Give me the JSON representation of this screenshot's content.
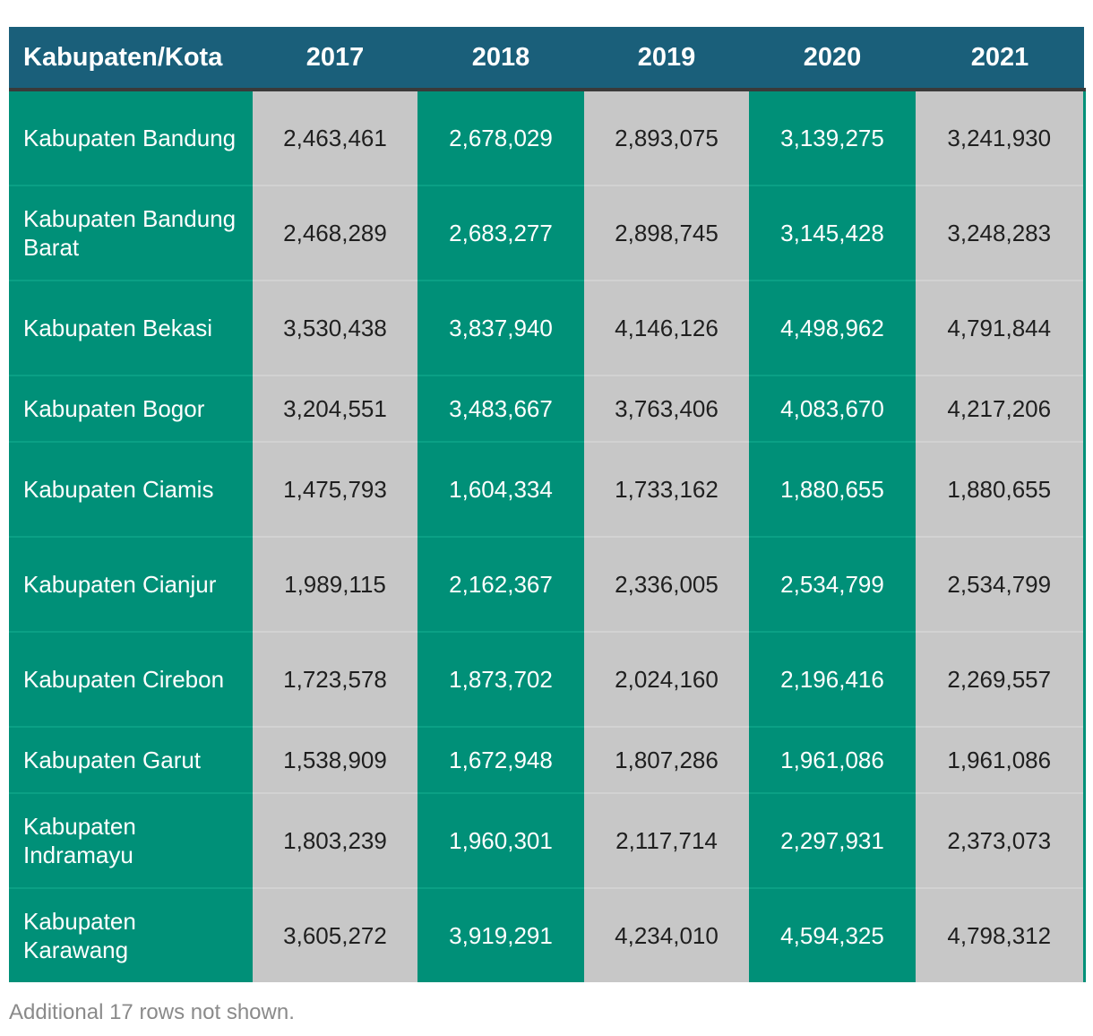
{
  "table": {
    "headers": [
      "Kabupaten/Kota",
      "2017",
      "2018",
      "2019",
      "2020",
      "2021"
    ],
    "rows": [
      {
        "name": "Kabupaten Bandung",
        "values": [
          "2,463,461",
          "2,678,029",
          "2,893,075",
          "3,139,275",
          "3,241,930"
        ]
      },
      {
        "name": "Kabupaten Bandung Barat",
        "values": [
          "2,468,289",
          "2,683,277",
          "2,898,745",
          "3,145,428",
          "3,248,283"
        ]
      },
      {
        "name": "Kabupaten Bekasi",
        "values": [
          "3,530,438",
          "3,837,940",
          "4,146,126",
          "4,498,962",
          "4,791,844"
        ]
      },
      {
        "name": "Kabupaten Bogor",
        "values": [
          "3,204,551",
          "3,483,667",
          "3,763,406",
          "4,083,670",
          "4,217,206"
        ]
      },
      {
        "name": "Kabupaten Ciamis",
        "values": [
          "1,475,793",
          "1,604,334",
          "1,733,162",
          "1,880,655",
          "1,880,655"
        ]
      },
      {
        "name": "Kabupaten Cianjur",
        "values": [
          "1,989,115",
          "2,162,367",
          "2,336,005",
          "2,534,799",
          "2,534,799"
        ]
      },
      {
        "name": "Kabupaten Cirebon",
        "values": [
          "1,723,578",
          "1,873,702",
          "2,024,160",
          "2,196,416",
          "2,269,557"
        ]
      },
      {
        "name": "Kabupaten Garut",
        "values": [
          "1,538,909",
          "1,672,948",
          "1,807,286",
          "1,961,086",
          "1,961,086"
        ]
      },
      {
        "name": "Kabupaten Indramayu",
        "values": [
          "1,803,239",
          "1,960,301",
          "2,117,714",
          "2,297,931",
          "2,373,073"
        ]
      },
      {
        "name": "Kabupaten Karawang",
        "values": [
          "3,605,272",
          "3,919,291",
          "4,234,010",
          "4,594,325",
          "4,798,312"
        ]
      }
    ],
    "footnote": "Additional 17 rows not shown."
  },
  "colors": {
    "header_bg": "#1a5f7a",
    "green": "#009078",
    "grey": "#c7c7c7",
    "footnote_text": "#8a8a8a"
  },
  "chart_data": {
    "type": "table",
    "columns": [
      "Kabupaten/Kota",
      "2017",
      "2018",
      "2019",
      "2020",
      "2021"
    ],
    "rows": [
      [
        "Kabupaten Bandung",
        2463461,
        2678029,
        2893075,
        3139275,
        3241930
      ],
      [
        "Kabupaten Bandung Barat",
        2468289,
        2683277,
        2898745,
        3145428,
        3248283
      ],
      [
        "Kabupaten Bekasi",
        3530438,
        3837940,
        4146126,
        4498962,
        4791844
      ],
      [
        "Kabupaten Bogor",
        3204551,
        3483667,
        3763406,
        4083670,
        4217206
      ],
      [
        "Kabupaten Ciamis",
        1475793,
        1604334,
        1733162,
        1880655,
        1880655
      ],
      [
        "Kabupaten Cianjur",
        1989115,
        2162367,
        2336005,
        2534799,
        2534799
      ],
      [
        "Kabupaten Cirebon",
        1723578,
        1873702,
        2024160,
        2196416,
        2269557
      ],
      [
        "Kabupaten Garut",
        1538909,
        1672948,
        1807286,
        1961086,
        1961086
      ],
      [
        "Kabupaten Indramayu",
        1803239,
        1960301,
        2117714,
        2297931,
        2373073
      ],
      [
        "Kabupaten Karawang",
        3605272,
        3919291,
        4234010,
        4594325,
        4798312
      ]
    ]
  }
}
